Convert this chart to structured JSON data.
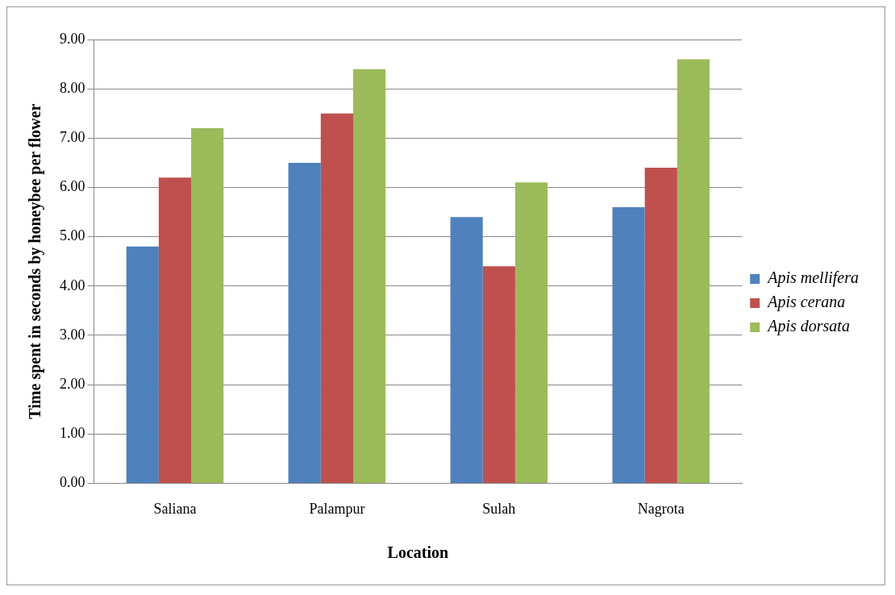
{
  "chart_data": {
    "type": "bar",
    "xlabel": "Location",
    "ylabel": "Time spent in seconds by honeybee per flower",
    "categories": [
      "Saliana",
      "Palampur",
      "Sulah",
      "Nagrota"
    ],
    "series": [
      {
        "name": "Apis mellifera",
        "color": "#4f81bd",
        "values": [
          4.8,
          6.5,
          5.4,
          5.6
        ]
      },
      {
        "name": "Apis cerana",
        "color": "#c0504d",
        "values": [
          6.2,
          7.5,
          4.4,
          6.4
        ]
      },
      {
        "name": "Apis dorsata",
        "color": "#9bbb59",
        "values": [
          7.2,
          8.4,
          6.1,
          8.6
        ]
      }
    ],
    "ylim": [
      0,
      9
    ],
    "yticks": [
      {
        "value": 0,
        "label": "0.00"
      },
      {
        "value": 1,
        "label": "1.00"
      },
      {
        "value": 2,
        "label": "2.00"
      },
      {
        "value": 3,
        "label": "3.00"
      },
      {
        "value": 4,
        "label": "4.00"
      },
      {
        "value": 5,
        "label": "5.00"
      },
      {
        "value": 6,
        "label": "6.00"
      },
      {
        "value": 7,
        "label": "7.00"
      },
      {
        "value": 8,
        "label": "8.00"
      },
      {
        "value": 9,
        "label": "9.00"
      }
    ],
    "grid": "y",
    "legend": "right"
  }
}
